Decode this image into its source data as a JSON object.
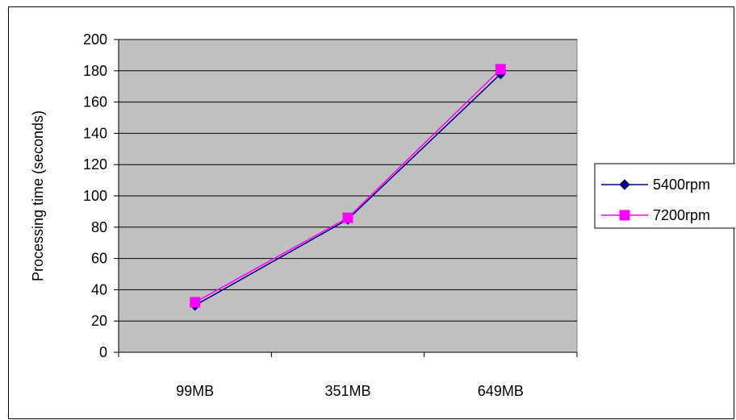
{
  "chart_data": {
    "type": "line",
    "title": "",
    "xlabel": "",
    "ylabel": "Processing time (seconds)",
    "categories": [
      "99MB",
      "351MB",
      "649MB"
    ],
    "ylim": [
      0,
      200
    ],
    "yticks": [
      0,
      20,
      40,
      60,
      80,
      100,
      120,
      140,
      160,
      180,
      200
    ],
    "grid": true,
    "legend_position": "right",
    "plot_background": "#c0c0c0",
    "series": [
      {
        "name": "5400rpm",
        "values": [
          30,
          85,
          178
        ],
        "color": "#000080",
        "marker": "diamond"
      },
      {
        "name": "7200rpm",
        "values": [
          32,
          86,
          181
        ],
        "color": "#ff00ff",
        "marker": "square"
      }
    ]
  }
}
